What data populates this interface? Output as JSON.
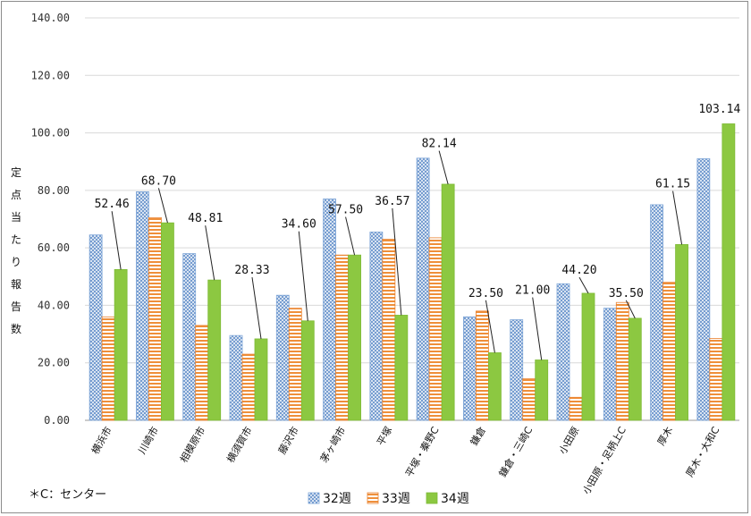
{
  "chart_data": {
    "type": "bar",
    "ylabel": "定点当たり報告数",
    "ylim": [
      0,
      140
    ],
    "yticks": [
      "0.00",
      "20.00",
      "40.00",
      "60.00",
      "80.00",
      "100.00",
      "120.00",
      "140.00"
    ],
    "grid": true,
    "legend": "bottom",
    "categories": [
      "横浜市",
      "川崎市",
      "相模原市",
      "横須賀市",
      "藤沢市",
      "茅ヶ崎市",
      "平塚",
      "平塚・秦野C",
      "鎌倉",
      "鎌倉・三崎C",
      "小田原",
      "小田原・足柄上C",
      "厚木",
      "厚木・大和C"
    ],
    "series": [
      {
        "name": "32週",
        "color": "#7ea6d8",
        "pattern": "cross",
        "values": [
          64.5,
          79.5,
          58.0,
          29.5,
          43.5,
          77.0,
          65.5,
          91.2,
          36.0,
          35.0,
          47.5,
          39.0,
          75.0,
          91.0
        ]
      },
      {
        "name": "33週",
        "color": "#ef8f3a",
        "pattern": "hstripe",
        "values": [
          36.0,
          70.5,
          33.0,
          23.0,
          39.0,
          57.5,
          63.0,
          63.5,
          38.0,
          14.5,
          8.0,
          41.0,
          48.0,
          28.5
        ]
      },
      {
        "name": "34週",
        "color": "#8cc841",
        "pattern": "solid",
        "values": [
          52.46,
          68.7,
          48.81,
          28.33,
          34.6,
          57.5,
          36.57,
          82.14,
          23.5,
          21.0,
          44.2,
          35.5,
          61.15,
          103.14
        ]
      }
    ],
    "data_labels": [
      "52.46",
      "68.70",
      "48.81",
      "28.33",
      "34.60",
      "57.50",
      "36.57",
      "82.14",
      "23.50",
      "21.00",
      "44.20",
      "35.50",
      "61.15",
      "103.14"
    ],
    "label_positions": [
      74,
      82,
      69,
      51,
      67,
      72,
      75,
      95,
      43,
      44,
      51,
      43,
      81,
      107
    ],
    "note": "＊C：センター"
  }
}
